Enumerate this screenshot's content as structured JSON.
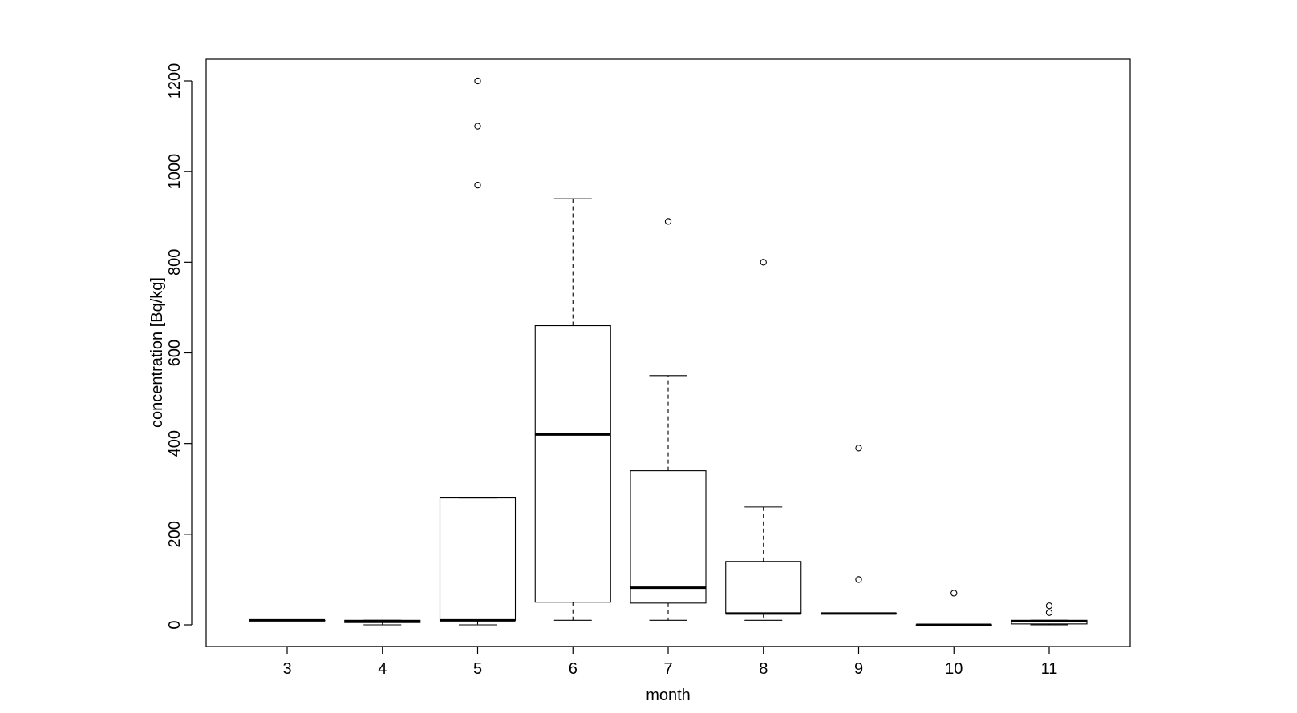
{
  "chart_data": {
    "type": "boxplot",
    "title": "",
    "xlabel": "month",
    "ylabel": "concentration [Bq/kg]",
    "ylim": [
      -45,
      1255
    ],
    "y_ticks": [
      0,
      200,
      400,
      600,
      800,
      1000,
      1200
    ],
    "grid": false,
    "legend": "none",
    "categories": [
      "3",
      "4",
      "5",
      "6",
      "7",
      "8",
      "9",
      "10",
      "11"
    ],
    "boxes": [
      {
        "category": "3",
        "whisker_low": 10,
        "q1": 10,
        "median": 10,
        "q3": 10,
        "whisker_high": 10,
        "outliers": []
      },
      {
        "category": "4",
        "whisker_low": 0,
        "q1": 5,
        "median": 8,
        "q3": 10,
        "whisker_high": 10,
        "outliers": []
      },
      {
        "category": "5",
        "whisker_low": 0,
        "q1": 10,
        "median": 10,
        "q3": 280,
        "whisker_high": 280,
        "outliers": [
          970,
          1100,
          1200
        ]
      },
      {
        "category": "6",
        "whisker_low": 10,
        "q1": 50,
        "median": 420,
        "q3": 660,
        "whisker_high": 940,
        "outliers": []
      },
      {
        "category": "7",
        "whisker_low": 10,
        "q1": 48,
        "median": 82,
        "q3": 340,
        "whisker_high": 550,
        "outliers": [
          890
        ]
      },
      {
        "category": "8",
        "whisker_low": 10,
        "q1": 25,
        "median": 25,
        "q3": 140,
        "whisker_high": 260,
        "outliers": [
          800
        ]
      },
      {
        "category": "9",
        "whisker_low": 25,
        "q1": 25,
        "median": 25,
        "q3": 25,
        "whisker_high": 25,
        "outliers": [
          100,
          390
        ]
      },
      {
        "category": "10",
        "whisker_low": 0,
        "q1": 0,
        "median": 0,
        "q3": 0,
        "whisker_high": 0,
        "outliers": [
          70
        ]
      },
      {
        "category": "11",
        "whisker_low": 0,
        "q1": 2,
        "median": 8,
        "q3": 10,
        "whisker_high": 10,
        "outliers": [
          27,
          42
        ]
      }
    ],
    "colors": {
      "stroke": "#000000",
      "background": "#ffffff"
    }
  }
}
